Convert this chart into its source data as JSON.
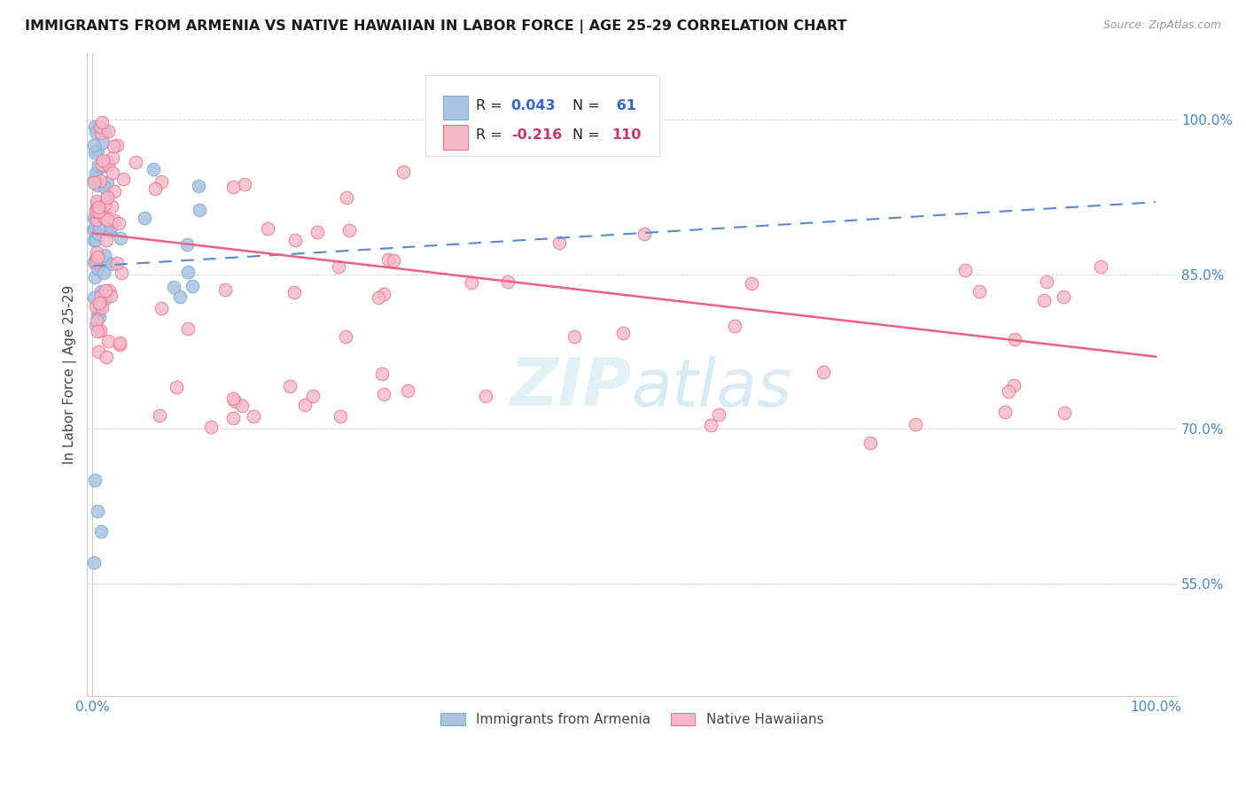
{
  "title": "IMMIGRANTS FROM ARMENIA VS NATIVE HAWAIIAN IN LABOR FORCE | AGE 25-29 CORRELATION CHART",
  "source": "Source: ZipAtlas.com",
  "ylabel": "In Labor Force | Age 25-29",
  "color_armenia": "#aac4e2",
  "color_armenia_edge": "#7aadd4",
  "color_native": "#f5b8c8",
  "color_native_edge": "#f07090",
  "color_trend_blue": "#5588cc",
  "color_trend_pink": "#f06080",
  "color_axis": "#4488cc",
  "color_grid": "#cccccc",
  "watermark_color": "#cce8f4",
  "arm_trend_x0": 0.0,
  "arm_trend_y0": 0.858,
  "arm_trend_x1": 1.0,
  "arm_trend_y1": 0.92,
  "nat_trend_x0": 0.0,
  "nat_trend_y0": 0.89,
  "nat_trend_x1": 1.0,
  "nat_trend_y1": 0.77,
  "ylim_low": 0.44,
  "ylim_high": 1.065,
  "xlim_low": -0.005,
  "xlim_high": 1.02,
  "yticks": [
    0.55,
    0.7,
    0.85,
    1.0
  ],
  "yticklabels": [
    "55.0%",
    "70.0%",
    "85.0%",
    "100.0%"
  ],
  "xticklabels_left": "0.0%",
  "xticklabels_right": "100.0%"
}
